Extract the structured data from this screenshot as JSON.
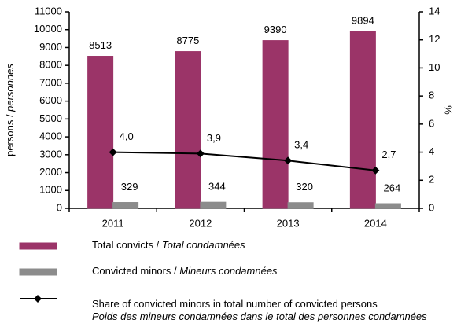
{
  "chart_data": {
    "type": "bar",
    "categories": [
      "2011",
      "2012",
      "2013",
      "2014"
    ],
    "y_label": "persons / personnes",
    "y2_label": "%",
    "ylim": [
      0,
      11000
    ],
    "yticks": [
      0,
      1000,
      2000,
      3000,
      4000,
      5000,
      6000,
      7000,
      8000,
      9000,
      10000,
      11000
    ],
    "y2lim": [
      0,
      14
    ],
    "y2ticks": [
      0,
      2,
      4,
      6,
      8,
      10,
      12,
      14
    ],
    "legend": "bottom",
    "series": [
      {
        "name": "Total convicts / Total condamnées",
        "type": "bar",
        "color": "#9b3468",
        "values": [
          8513,
          8775,
          9390,
          9894
        ]
      },
      {
        "name": "Convicted minors / Mineurs condamnées",
        "type": "bar",
        "color": "#8c8c8c",
        "values": [
          329,
          344,
          320,
          264
        ]
      },
      {
        "name": "Share of convicted minors in total number of convicted persons\nPoids des mineurs condamnées dans le total des personnes condamnées",
        "type": "line",
        "axis": "y2",
        "color": "#000000",
        "values": [
          4.0,
          3.9,
          3.4,
          2.7
        ],
        "value_labels": [
          "4,0",
          "3,9",
          "3,4",
          "2,7"
        ]
      }
    ]
  }
}
